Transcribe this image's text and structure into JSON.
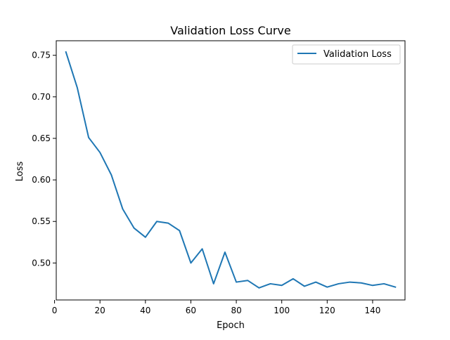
{
  "chart_data": {
    "type": "line",
    "title": "Validation Loss Curve",
    "xlabel": "Epoch",
    "ylabel": "Loss",
    "xlim": [
      0.75,
      154.25
    ],
    "ylim": [
      0.4555,
      0.7675
    ],
    "xticks": [
      0,
      20,
      40,
      60,
      80,
      100,
      120,
      140
    ],
    "yticks": [
      0.5,
      0.55,
      0.6,
      0.65,
      0.7,
      0.75
    ],
    "xtick_labels": [
      "0",
      "20",
      "40",
      "60",
      "80",
      "100",
      "120",
      "140"
    ],
    "ytick_labels": [
      "0.50",
      "0.55",
      "0.60",
      "0.65",
      "0.70",
      "0.75"
    ],
    "grid": false,
    "legend_position": "top-right",
    "x": [
      5,
      10,
      15,
      20,
      25,
      30,
      35,
      40,
      45,
      50,
      55,
      60,
      65,
      70,
      75,
      80,
      85,
      90,
      95,
      100,
      105,
      110,
      115,
      120,
      125,
      130,
      135,
      140,
      145,
      150
    ],
    "series": [
      {
        "name": "Validation Loss",
        "color": "#1f77b4",
        "values": [
          0.754,
          0.711,
          0.651,
          0.633,
          0.606,
          0.565,
          0.542,
          0.531,
          0.55,
          0.548,
          0.539,
          0.5,
          0.517,
          0.475,
          0.513,
          0.477,
          0.479,
          0.47,
          0.475,
          0.473,
          0.481,
          0.472,
          0.477,
          0.471,
          0.475,
          0.477,
          0.476,
          0.473,
          0.475,
          0.471
        ]
      }
    ]
  }
}
